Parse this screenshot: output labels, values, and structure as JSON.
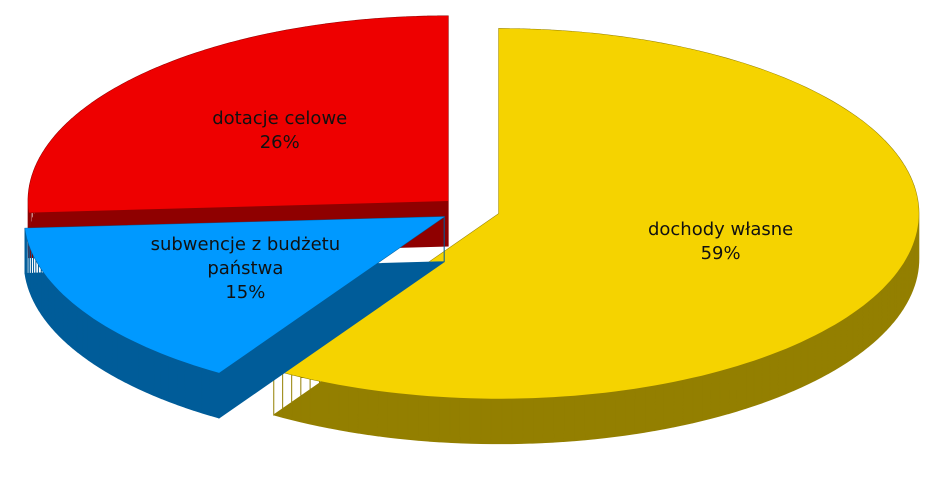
{
  "chart_data": {
    "type": "pie",
    "categories": [
      "dochody własne",
      "subwencje z budżetu państwa",
      "dotacje celowe"
    ],
    "values": [
      59,
      15,
      26
    ],
    "value_labels": [
      "59%",
      "15%",
      "26%"
    ],
    "colors": [
      "#f5d300",
      "#0099ff",
      "#ee0000"
    ]
  }
}
